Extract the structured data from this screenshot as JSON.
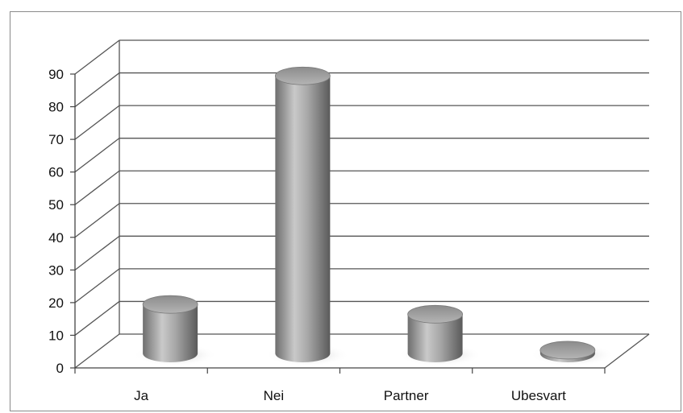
{
  "chart_data": {
    "type": "bar",
    "style": "3d-cylinder",
    "categories": [
      "Ja",
      "Nei",
      "Partner",
      "Ubesvart"
    ],
    "values": [
      15,
      85,
      12,
      1
    ],
    "title": "",
    "xlabel": "",
    "ylabel": "",
    "ylim": [
      0,
      90
    ],
    "yticks": [
      "0",
      "10",
      "20",
      "30",
      "40",
      "50",
      "60",
      "70",
      "80",
      "90"
    ],
    "grid": true,
    "legend": "none",
    "colors": {
      "bar": "#9a9a9a",
      "grid": "#555555",
      "frame": "#8a8a8a"
    }
  }
}
